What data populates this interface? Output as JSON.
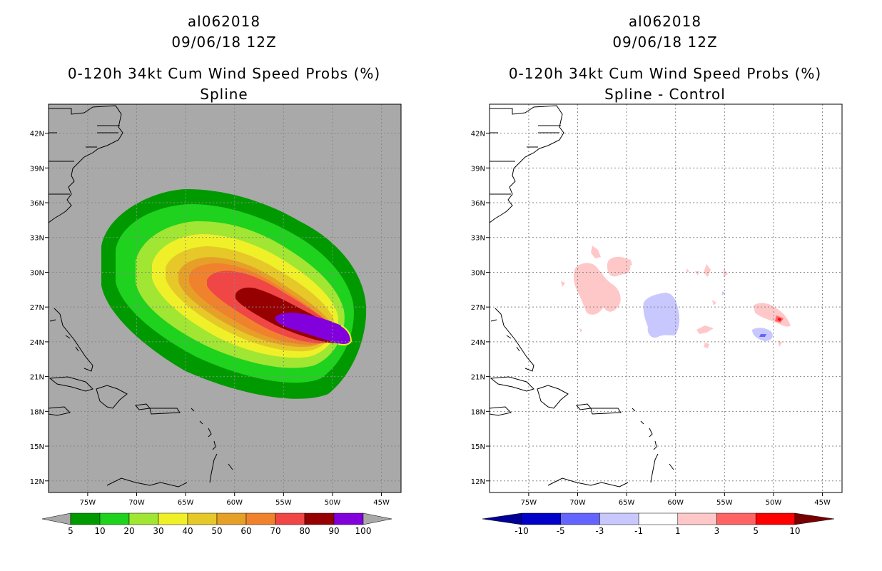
{
  "chart_data": [
    {
      "type": "filled-contour-map",
      "title_lines": [
        "al062018",
        "09/06/18 12Z",
        "0-120h 34kt Cum Wind Speed Probs (%)",
        "Spline"
      ],
      "lon_ticks": [
        "75W",
        "70W",
        "65W",
        "60W",
        "55W",
        "50W",
        "45W"
      ],
      "lat_ticks": [
        "42N",
        "39N",
        "36N",
        "33N",
        "30N",
        "27N",
        "24N",
        "21N",
        "18N",
        "15N",
        "12N"
      ],
      "lon_range": [
        -79,
        -43
      ],
      "lat_range": [
        11,
        44.5
      ],
      "background_color": "#a9a9a9",
      "colorbar": {
        "labels": [
          "5",
          "10",
          "20",
          "30",
          "40",
          "50",
          "60",
          "70",
          "80",
          "90",
          "100"
        ],
        "colors": [
          "#009a00",
          "#1ed21e",
          "#a0e632",
          "#f0f028",
          "#e6c828",
          "#e6a028",
          "#f0822d",
          "#f04646",
          "#960000",
          "#8200dc"
        ],
        "end_color": "#a9a9a9"
      }
    },
    {
      "type": "filled-contour-map",
      "title_lines": [
        "al062018",
        "09/06/18 12Z",
        "0-120h 34kt Cum Wind Speed Probs (%)",
        "Spline - Control"
      ],
      "lon_ticks": [
        "75W",
        "70W",
        "65W",
        "60W",
        "55W",
        "50W",
        "45W"
      ],
      "lat_ticks": [
        "42N",
        "39N",
        "36N",
        "33N",
        "30N",
        "27N",
        "24N",
        "21N",
        "18N",
        "15N",
        "12N"
      ],
      "lon_range": [
        -79,
        -43
      ],
      "lat_range": [
        11,
        44.5
      ],
      "background_color": "#ffffff",
      "colorbar": {
        "labels": [
          "-10",
          "-5",
          "-3",
          "-1",
          "1",
          "3",
          "5",
          "10"
        ],
        "colors": [
          "#0000c8",
          "#6464ff",
          "#c8c8ff",
          "#ffffff",
          "#ffc8c8",
          "#ff6464",
          "#ff0000"
        ],
        "end_left_color": "#000096",
        "end_right_color": "#780000"
      }
    }
  ]
}
